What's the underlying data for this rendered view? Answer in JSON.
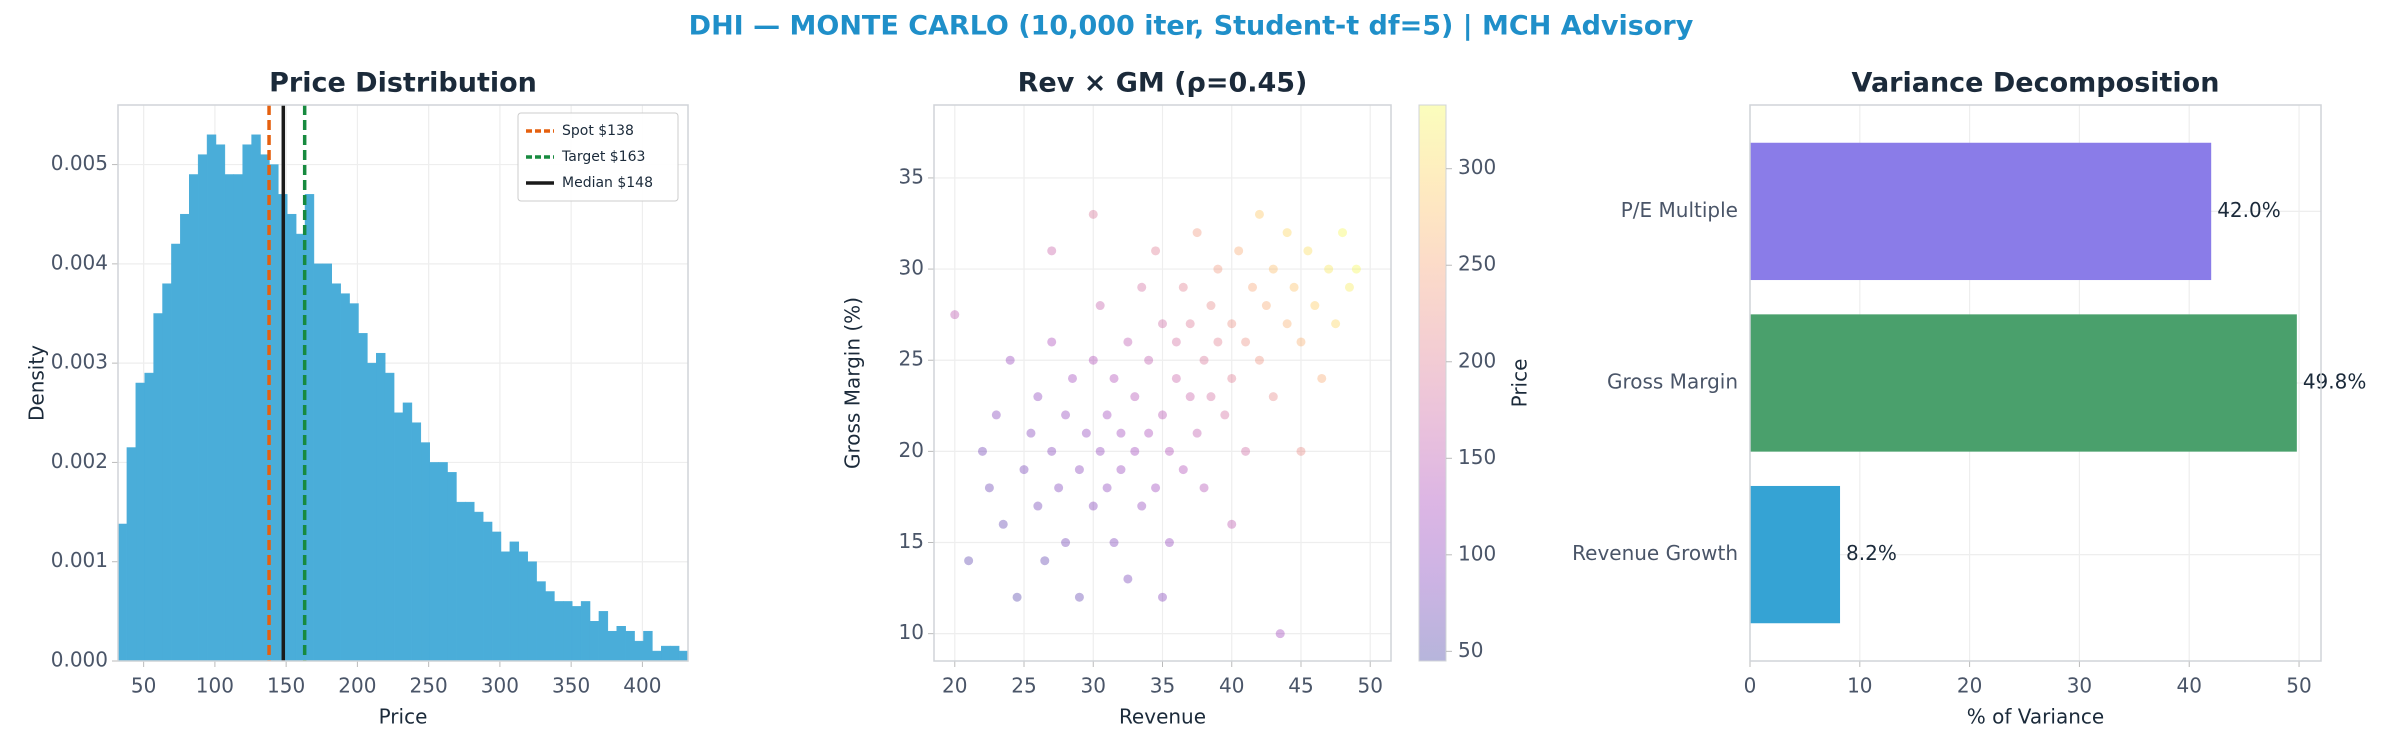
{
  "title": "DHI — MONTE CARLO (10,000 iter, Student-t df=5) | MCH Advisory",
  "chart_data": [
    {
      "type": "histogram",
      "title": "Price Distribution",
      "xlabel": "Price",
      "ylabel": "Density",
      "color": "#4aadd9",
      "bins": [
        32,
        38.25,
        44.5,
        50.75,
        57,
        63.25,
        69.5,
        75.75,
        82,
        88.25,
        94.5,
        100.75,
        107,
        113.25,
        119.5,
        125.75,
        132,
        138.25,
        144.5,
        150.75,
        157,
        163.25,
        169.5,
        175.75,
        182,
        188.25,
        194.5,
        200.75,
        207,
        213.25,
        219.5,
        225.75,
        232,
        238.25,
        244.5,
        250.75,
        257,
        263.25,
        269.5,
        275.75,
        282,
        288.25,
        294.5,
        300.75,
        307,
        313.25,
        319.5,
        325.75,
        332,
        338.25,
        344.5,
        350.75,
        357,
        363.25,
        369.5,
        375.75,
        382,
        388.25,
        394.5,
        400.75,
        407,
        413.25,
        419.5,
        425.75,
        432
      ],
      "values": [
        0.00138,
        0.00215,
        0.0028,
        0.0029,
        0.0035,
        0.0038,
        0.0042,
        0.0045,
        0.0049,
        0.0051,
        0.0053,
        0.0052,
        0.0049,
        0.0049,
        0.0052,
        0.0053,
        0.0051,
        0.005,
        0.0047,
        0.0045,
        0.0043,
        0.0047,
        0.004,
        0.004,
        0.0038,
        0.0037,
        0.0036,
        0.0033,
        0.003,
        0.0031,
        0.0029,
        0.0025,
        0.0026,
        0.0024,
        0.0022,
        0.002,
        0.002,
        0.0019,
        0.0016,
        0.0016,
        0.0015,
        0.0014,
        0.0013,
        0.0011,
        0.0012,
        0.0011,
        0.001,
        0.0008,
        0.0007,
        0.0006,
        0.0006,
        0.00055,
        0.0006,
        0.0004,
        0.0005,
        0.0003,
        0.00035,
        0.0003,
        0.0002,
        0.0003,
        0.0001,
        0.00015,
        0.00015,
        0.0001
      ],
      "xlim": [
        32,
        432
      ],
      "xticks": [
        50,
        100,
        150,
        200,
        250,
        300,
        350,
        400
      ],
      "ylim": [
        0,
        0.0056
      ],
      "yticks": [
        {
          "value": 0,
          "label": "0.000"
        },
        {
          "value": 0.001,
          "label": "0.001"
        },
        {
          "value": 0.002,
          "label": "0.002"
        },
        {
          "value": 0.003,
          "label": "0.003"
        },
        {
          "value": 0.004,
          "label": "0.004"
        },
        {
          "value": 0.005,
          "label": "0.005"
        }
      ],
      "grid": true,
      "legend": "upper right",
      "vlines": [
        {
          "name": "Spot $138",
          "value": 138,
          "color": "#e5600f",
          "style": "dashed"
        },
        {
          "name": "Target $163",
          "value": 163,
          "color": "#178a3f",
          "style": "dashed"
        },
        {
          "name": "Median $148",
          "value": 148,
          "color": "#1a1a1a",
          "style": "solid"
        }
      ]
    },
    {
      "type": "scatter",
      "title": "Rev × GM (ρ=0.45)",
      "xlabel": "Revenue",
      "ylabel": "Gross Margin (%)",
      "colormap": "plasma",
      "alpha": 0.3,
      "x": [
        20,
        21,
        22,
        22.5,
        23,
        23.5,
        24,
        24.5,
        25,
        25.5,
        26,
        26,
        26.5,
        27,
        27,
        27.5,
        28,
        28,
        28.5,
        29,
        29,
        29.5,
        30,
        30,
        30.5,
        30.5,
        31,
        31,
        31.5,
        31.5,
        32,
        32,
        32.5,
        32.5,
        33,
        33,
        33.5,
        33.5,
        34,
        34,
        34.5,
        34.5,
        35,
        35,
        35.5,
        35.5,
        36,
        36,
        36.5,
        36.5,
        37,
        37,
        37.5,
        37.5,
        38,
        38,
        38.5,
        38.5,
        39,
        39,
        39.5,
        40,
        40,
        40.5,
        41,
        41,
        41.5,
        42,
        42,
        42.5,
        43,
        43,
        43.5,
        44,
        44,
        44.5,
        45,
        45.5,
        46,
        46.5,
        47,
        47.5,
        48,
        48.5,
        49,
        30,
        27,
        35,
        40,
        45
      ],
      "y": [
        27.5,
        14,
        20,
        18,
        22,
        16,
        25,
        12,
        19,
        21,
        17,
        23,
        14,
        20,
        26,
        18,
        22,
        15,
        24,
        19,
        12,
        21,
        17,
        25,
        20,
        28,
        18,
        22,
        15,
        24,
        19,
        21,
        26,
        13,
        20,
        23,
        17,
        29,
        21,
        25,
        18,
        31,
        22,
        27,
        20,
        15,
        24,
        26,
        19,
        29,
        23,
        27,
        21,
        32,
        25,
        18,
        28,
        23,
        26,
        30,
        22,
        27,
        24,
        31,
        26,
        20,
        29,
        25,
        33,
        28,
        30,
        23,
        10,
        27,
        32,
        29,
        26,
        31,
        28,
        24,
        30,
        27,
        32,
        29,
        30,
        33,
        31,
        12,
        16,
        20
      ],
      "c": [
        150,
        60,
        75,
        70,
        90,
        65,
        110,
        55,
        80,
        90,
        75,
        100,
        65,
        90,
        130,
        85,
        105,
        75,
        120,
        95,
        65,
        105,
        90,
        135,
        105,
        160,
        100,
        120,
        85,
        135,
        110,
        120,
        150,
        80,
        120,
        140,
        105,
        180,
        130,
        155,
        115,
        200,
        145,
        175,
        135,
        105,
        165,
        180,
        135,
        205,
        165,
        195,
        155,
        235,
        190,
        140,
        215,
        180,
        205,
        235,
        180,
        225,
        200,
        255,
        225,
        175,
        250,
        230,
        285,
        255,
        275,
        215,
        120,
        260,
        300,
        280,
        260,
        305,
        290,
        255,
        315,
        300,
        330,
        320,
        330,
        190,
        165,
        90,
        150,
        220
      ],
      "xlim": [
        18.5,
        51.5
      ],
      "xticks": [
        20,
        25,
        30,
        35,
        40,
        45,
        50
      ],
      "ylim": [
        8.5,
        39
      ],
      "yticks": [
        10,
        15,
        20,
        25,
        30,
        35
      ],
      "grid": true,
      "colorbar": {
        "label": "Price",
        "lim": [
          45,
          333
        ],
        "ticks": [
          50,
          100,
          150,
          200,
          250,
          300
        ]
      }
    },
    {
      "type": "bar",
      "orientation": "horizontal",
      "title": "Variance Decomposition",
      "xlabel": "% of Variance",
      "categories": [
        "Revenue Growth",
        "Gross Margin",
        "P/E Multiple"
      ],
      "values": [
        8.2,
        49.8,
        42.0
      ],
      "value_labels": [
        "8.2%",
        "49.8%",
        "42.0%"
      ],
      "colors": [
        "#35a3d4",
        "#4aa06c",
        "#8a7ce8"
      ],
      "xlim": [
        0,
        52
      ],
      "xticks": [
        0,
        10,
        20,
        30,
        40,
        50
      ],
      "grid": true
    }
  ]
}
